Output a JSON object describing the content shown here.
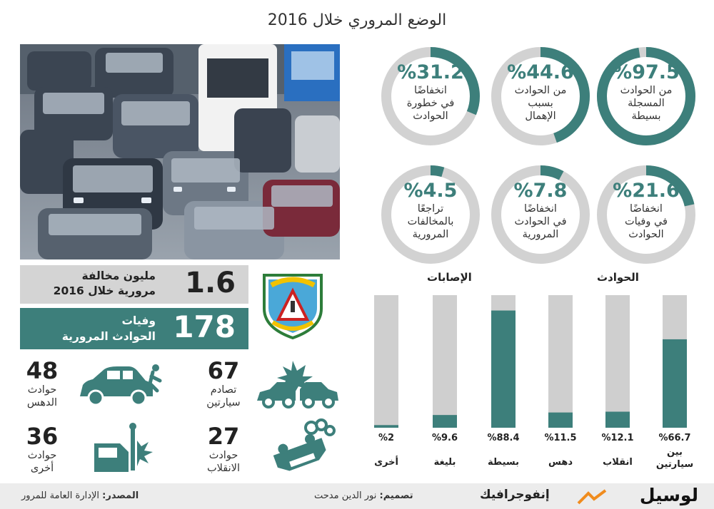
{
  "title": "الوضع المروري خلال 2016",
  "rings": [
    {
      "pct": "%97.5",
      "label": [
        "من الحوادث",
        "المسجلة",
        "بسيطة"
      ],
      "value": 97.5
    },
    {
      "pct": "%44.6",
      "label": [
        "من الحوادث",
        "بسبب",
        "الإهمال"
      ],
      "value": 44.6
    },
    {
      "pct": "%31.2",
      "label": [
        "انخفاضًا",
        "في خطورة",
        "الحوادث"
      ],
      "value": 31.2
    },
    {
      "pct": "%21.6",
      "label": [
        "انخفاضًا",
        "في وفيات",
        "الحوادث"
      ],
      "value": 21.6
    },
    {
      "pct": "%7.8",
      "label": [
        "انخفاضًا",
        "في الحوادث",
        "المرورية"
      ],
      "value": 7.8
    },
    {
      "pct": "%4.5",
      "label": [
        "تراجعًا",
        "بالمخالفات",
        "المرورية"
      ],
      "value": 4.5
    }
  ],
  "stats": {
    "violations": {
      "number": "1.6",
      "label1": "مليون مخالفة",
      "label2": "مرورية خلال 2016"
    },
    "deaths": {
      "number": "178",
      "label1": "وفيات",
      "label2": "الحوادث المرورية"
    }
  },
  "small_stats": [
    {
      "number": "48",
      "label": [
        "حوادث",
        "الدهس"
      ],
      "icon": "pedestrian-hit-icon"
    },
    {
      "number": "67",
      "label": [
        "تصادم",
        "سيارتين"
      ],
      "icon": "car-collision-icon"
    },
    {
      "number": "36",
      "label": [
        "حوادث",
        "أخرى"
      ],
      "icon": "car-pole-icon"
    },
    {
      "number": "27",
      "label": [
        "حوادث",
        "الانقلاب"
      ],
      "icon": "overturned-car-icon"
    }
  ],
  "chart_data": {
    "type": "bar",
    "groups": [
      {
        "title": "الحوادث",
        "categories": [
          "بين سيارتين",
          "انقلاب",
          "دهس"
        ],
        "values": [
          66.7,
          12.1,
          11.5
        ],
        "labels": [
          "%66.7",
          "%12.1",
          "%11.5"
        ]
      },
      {
        "title": "الإصابات",
        "categories": [
          "بسيطة",
          "بليغة",
          "أخرى"
        ],
        "values": [
          88.4,
          9.6,
          2
        ],
        "labels": [
          "%88.4",
          "%9.6",
          "%2"
        ]
      }
    ],
    "ylim": [
      0,
      100
    ],
    "colors": {
      "fill": "#3d7f7b",
      "background": "#cfcfcf"
    }
  },
  "footer": {
    "brand": "لوسيل",
    "section": "إنفوجرافيك",
    "design_label": "تصميم:",
    "design_name": "نور الدين مدحت",
    "source_label": "المصدر:",
    "source_name": "الإدارة العامة للمرور"
  },
  "colors": {
    "accent": "#3d7f7b",
    "grey": "#d2d2d2",
    "orange": "#f08c1e"
  }
}
